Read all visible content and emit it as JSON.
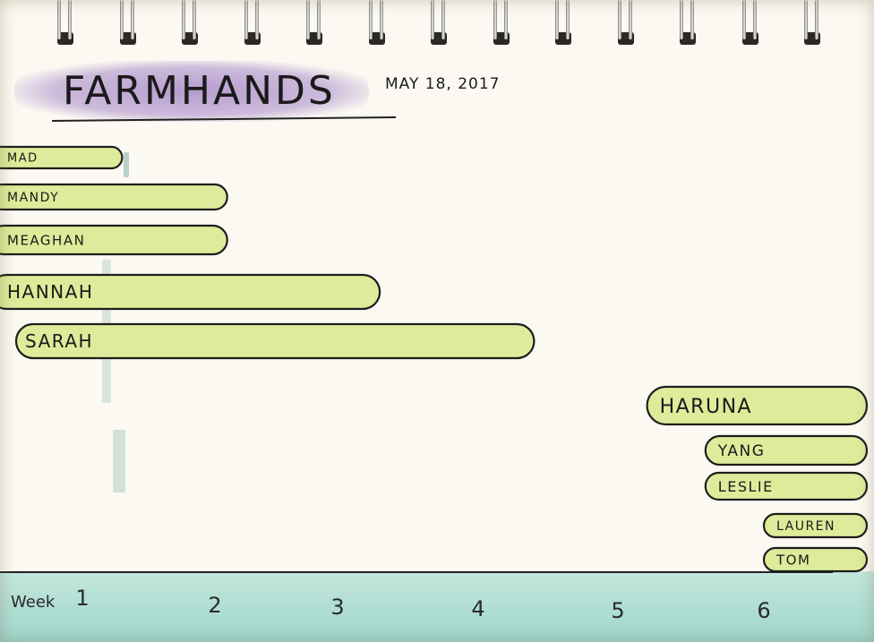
{
  "title": "FARMHANDS",
  "date": "MAY 18, 2017",
  "chart_data": {
    "type": "bar",
    "orientation": "horizontal",
    "xlabel": "Week",
    "x_ticks": [
      "1",
      "2",
      "3",
      "4",
      "5",
      "6"
    ],
    "xlim": [
      0.3,
      6.8
    ],
    "grid": false,
    "legend": "none",
    "bar_color": "#dcec9a",
    "bars": [
      {
        "name": "MAD",
        "start": 0.3,
        "end": 1.3
      },
      {
        "name": "MANDY",
        "start": 0.3,
        "end": 2.1
      },
      {
        "name": "MEAGHAN",
        "start": 0.3,
        "end": 2.1
      },
      {
        "name": "HANNAH",
        "start": 0.3,
        "end": 3.3
      },
      {
        "name": "SARAH",
        "start": 0.5,
        "end": 4.4
      },
      {
        "name": "HARUNA",
        "start": 5.2,
        "end": 6.8
      },
      {
        "name": "YANG",
        "start": 5.6,
        "end": 6.8
      },
      {
        "name": "LESLIE",
        "start": 5.6,
        "end": 6.8
      },
      {
        "name": "LAUREN",
        "start": 6.0,
        "end": 6.8
      },
      {
        "name": "TOM",
        "start": 6.0,
        "end": 6.8
      }
    ]
  }
}
